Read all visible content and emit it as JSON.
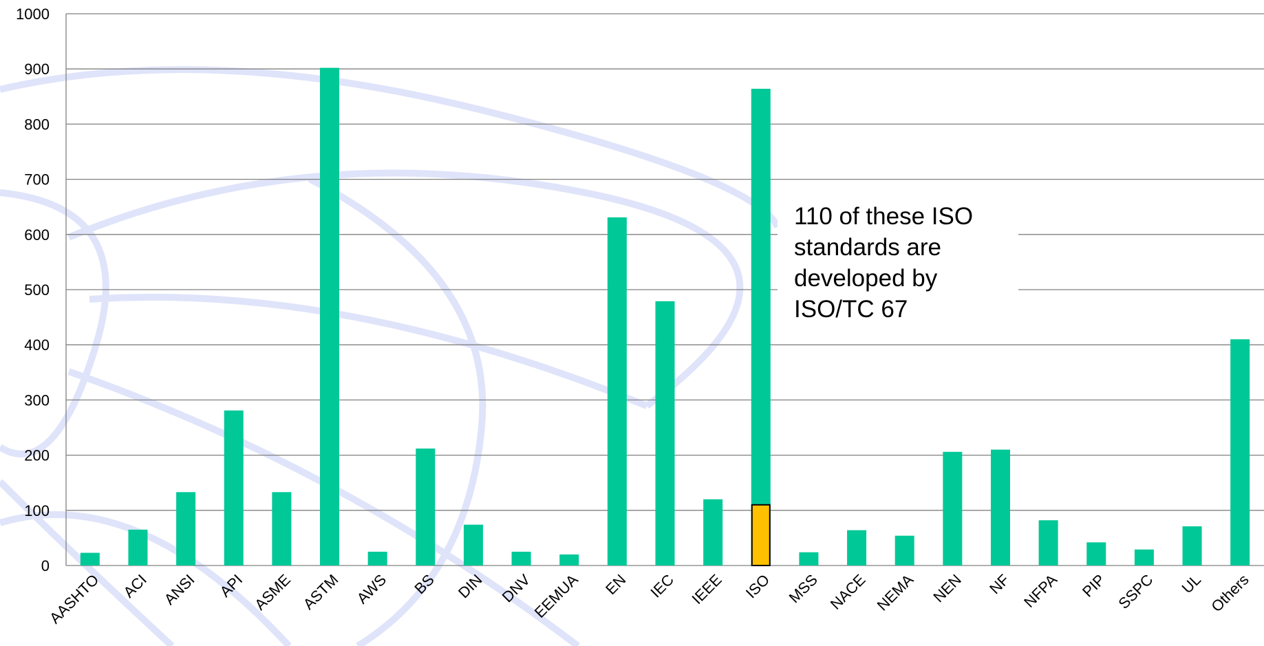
{
  "chart_data": {
    "type": "bar",
    "categories": [
      "AASHTO",
      "ACI",
      "ANSI",
      "API",
      "ASME",
      "ASTM",
      "AWS",
      "BS",
      "DIN",
      "DNV",
      "EEMUA",
      "EN",
      "IEC",
      "IEEE",
      "ISO",
      "MSS",
      "NACE",
      "NEMA",
      "NEN",
      "NF",
      "NFPA",
      "PIP",
      "SSPC",
      "UL",
      "Others"
    ],
    "series": [
      {
        "values": [
          23,
          65,
          133,
          281,
          133,
          902,
          25,
          212,
          74,
          25,
          20,
          631,
          479,
          120,
          864,
          24,
          64,
          54,
          206,
          210,
          82,
          42,
          29,
          71,
          410
        ],
        "color": "#00c896"
      },
      {
        "values": [
          0,
          0,
          0,
          0,
          0,
          0,
          0,
          0,
          0,
          0,
          0,
          0,
          0,
          0,
          110,
          0,
          0,
          0,
          0,
          0,
          0,
          0,
          0,
          0,
          0
        ],
        "color": "#ffc000"
      }
    ],
    "ylim": [
      0,
      1000
    ],
    "yticks": [
      0,
      100,
      200,
      300,
      400,
      500,
      600,
      700,
      800,
      900,
      1000
    ],
    "grid": true,
    "annotation": {
      "lines": [
        "110 of these ISO",
        "standards are",
        "developed by",
        "ISO/TC 67"
      ]
    }
  },
  "colors": {
    "bar": "#00c896",
    "highlight": "#ffc000",
    "grid": "#808080",
    "watermark": "#dfe4fb"
  }
}
